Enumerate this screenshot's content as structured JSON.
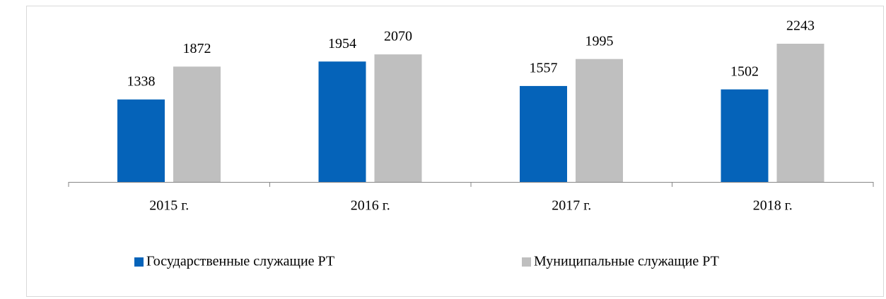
{
  "chart_data": {
    "type": "bar",
    "categories": [
      "2015 г.",
      "2016 г.",
      "2017 г.",
      "2018 г."
    ],
    "series": [
      {
        "name": "Государственные служащие РТ",
        "color": "#0563b9",
        "values": [
          1338,
          1954,
          1557,
          1502
        ]
      },
      {
        "name": "Муниципальные служащие РТ",
        "color": "#bfbfbf",
        "values": [
          1872,
          2070,
          1995,
          2243
        ]
      }
    ],
    "legend": "bottom"
  }
}
